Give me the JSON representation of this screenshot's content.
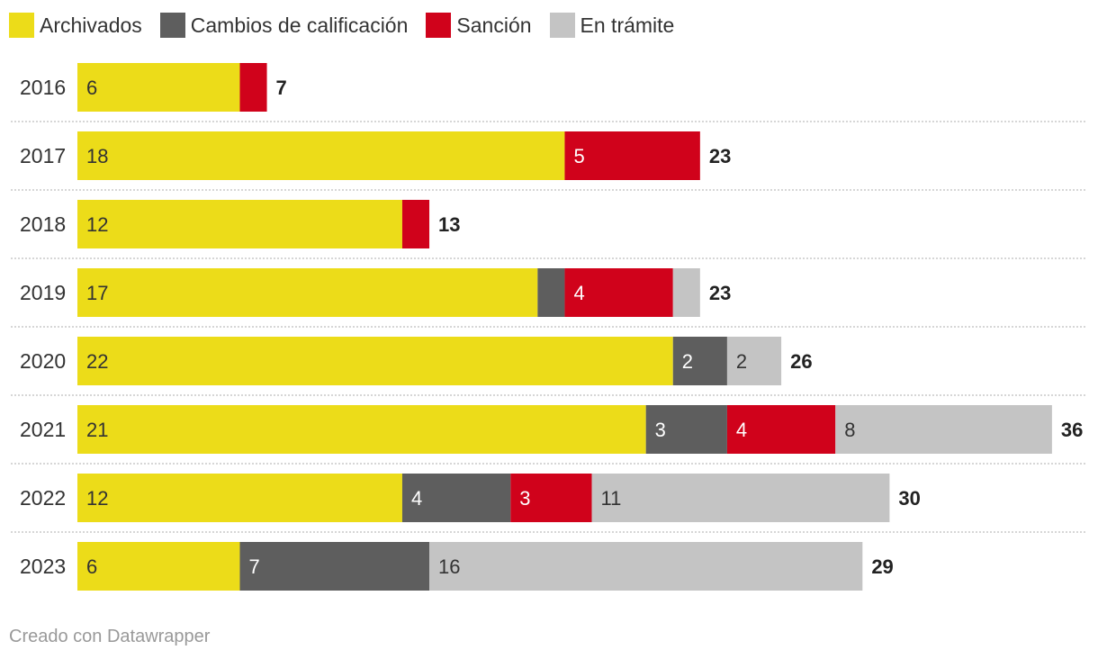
{
  "chart_data": {
    "type": "bar",
    "orientation": "horizontal",
    "stacked": true,
    "categories": [
      "2016",
      "2017",
      "2018",
      "2019",
      "2020",
      "2021",
      "2022",
      "2023"
    ],
    "series": [
      {
        "name": "Archivados",
        "color": "#ecdc19",
        "label_color": "#333333",
        "values": [
          6,
          18,
          12,
          17,
          22,
          21,
          12,
          6
        ]
      },
      {
        "name": "Cambios de calificación",
        "color": "#5e5e5e",
        "label_color": "#ffffff",
        "values": [
          0,
          0,
          0,
          1,
          2,
          3,
          4,
          7
        ]
      },
      {
        "name": "Sanción",
        "color": "#d0021b",
        "label_color": "#ffffff",
        "values": [
          1,
          5,
          1,
          4,
          0,
          4,
          3,
          0
        ]
      },
      {
        "name": "En trámite",
        "color": "#c4c4c4",
        "label_color": "#333333",
        "values": [
          0,
          0,
          0,
          1,
          2,
          8,
          11,
          16
        ]
      }
    ],
    "segment_labels": [
      [
        "6",
        "",
        "",
        ""
      ],
      [
        "18",
        "",
        "5",
        ""
      ],
      [
        "12",
        "",
        "",
        ""
      ],
      [
        "17",
        "",
        "4",
        ""
      ],
      [
        "22",
        "2",
        "",
        "2"
      ],
      [
        "21",
        "3",
        "4",
        "8"
      ],
      [
        "12",
        "4",
        "3",
        "11"
      ],
      [
        "6",
        "7",
        "",
        "16"
      ]
    ],
    "totals": [
      "7",
      "23",
      "13",
      "23",
      "26",
      "36",
      "30",
      "29"
    ],
    "xlim": [
      0,
      36
    ],
    "legend_position": "top-left",
    "grid": false
  },
  "footer": {
    "credit": "Creado con Datawrapper"
  }
}
